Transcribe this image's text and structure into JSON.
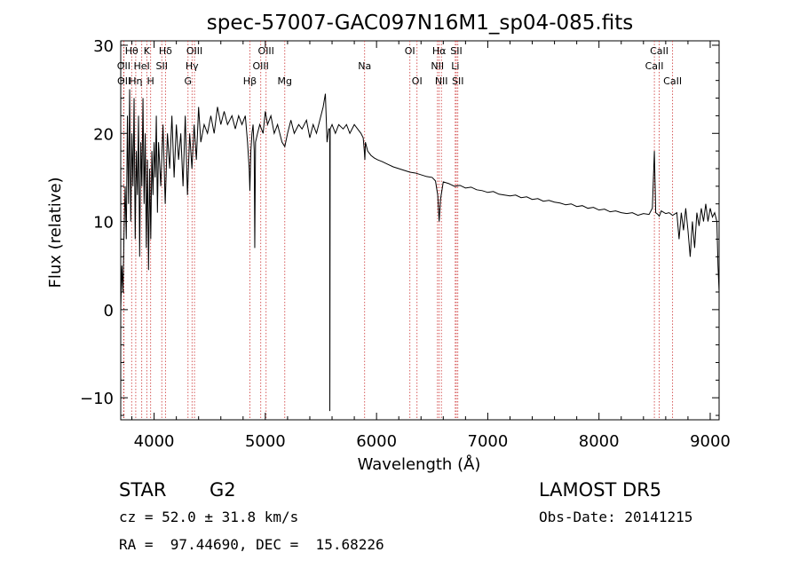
{
  "chart_data": {
    "type": "line",
    "title": "spec-57007-GAC097N16M1_sp04-085.fits",
    "xlabel": "Wavelength (Å)",
    "ylabel": "Flux (relative)",
    "xlim": [
      3700,
      9080
    ],
    "ylim": [
      -12.5,
      30.5
    ],
    "xticks": [
      4000,
      5000,
      6000,
      7000,
      8000,
      9000
    ],
    "yticks": [
      -10,
      0,
      10,
      20,
      30
    ],
    "grid": false,
    "legend": "none",
    "line_color": "#000000",
    "marker_color": "#cc3333",
    "spectral_lines": [
      {
        "label": "Hθ",
        "wavelength": 3798,
        "row": 0
      },
      {
        "label": "OII",
        "wavelength": 3727,
        "row": 1
      },
      {
        "label": "OII",
        "wavelength": 3729,
        "row": 2
      },
      {
        "label": "Hη",
        "wavelength": 3835,
        "row": 2
      },
      {
        "label": "HeI",
        "wavelength": 3889,
        "row": 1
      },
      {
        "label": "K",
        "wavelength": 3934,
        "row": 0
      },
      {
        "label": "H",
        "wavelength": 3969,
        "row": 2
      },
      {
        "label": "SII",
        "wavelength": 4069,
        "row": 1
      },
      {
        "label": "Hδ",
        "wavelength": 4102,
        "row": 0
      },
      {
        "label": "OIII",
        "wavelength": 4363,
        "row": 0
      },
      {
        "label": "Hγ",
        "wavelength": 4341,
        "row": 1
      },
      {
        "label": "G",
        "wavelength": 4305,
        "row": 2
      },
      {
        "label": "Hβ",
        "wavelength": 4861,
        "row": 2
      },
      {
        "label": "OIII",
        "wavelength": 5007,
        "row": 0
      },
      {
        "label": "OIII",
        "wavelength": 4959,
        "row": 1
      },
      {
        "label": "Mg",
        "wavelength": 5175,
        "row": 2
      },
      {
        "label": "Na",
        "wavelength": 5893,
        "row": 1
      },
      {
        "label": "OI",
        "wavelength": 6300,
        "row": 0
      },
      {
        "label": "OI",
        "wavelength": 6364,
        "row": 2
      },
      {
        "label": "Hα",
        "wavelength": 6563,
        "row": 0
      },
      {
        "label": "NII",
        "wavelength": 6548,
        "row": 1
      },
      {
        "label": "NII",
        "wavelength": 6583,
        "row": 2
      },
      {
        "label": "SII",
        "wavelength": 6717,
        "row": 0
      },
      {
        "label": "Li",
        "wavelength": 6708,
        "row": 1
      },
      {
        "label": "SII",
        "wavelength": 6731,
        "row": 2
      },
      {
        "label": "CaII",
        "wavelength": 8542,
        "row": 0
      },
      {
        "label": "CaII",
        "wavelength": 8498,
        "row": 1
      },
      {
        "label": "CaII",
        "wavelength": 8662,
        "row": 2
      }
    ],
    "series": [
      {
        "values": [
          [
            3700,
            0.0
          ],
          [
            3710,
            5.0
          ],
          [
            3720,
            2.0
          ],
          [
            3730,
            9.0
          ],
          [
            3740,
            14.0
          ],
          [
            3750,
            8.0
          ],
          [
            3760,
            22.0
          ],
          [
            3770,
            12.0
          ],
          [
            3780,
            25.0
          ],
          [
            3790,
            10.0
          ],
          [
            3800,
            20.0
          ],
          [
            3810,
            14.0
          ],
          [
            3820,
            24.0
          ],
          [
            3830,
            8.0
          ],
          [
            3840,
            18.0
          ],
          [
            3850,
            13.0
          ],
          [
            3860,
            22.0
          ],
          [
            3870,
            6.0
          ],
          [
            3880,
            19.0
          ],
          [
            3890,
            14.0
          ],
          [
            3900,
            24.0
          ],
          [
            3910,
            12.0
          ],
          [
            3920,
            20.0
          ],
          [
            3930,
            7.0
          ],
          [
            3940,
            17.0
          ],
          [
            3950,
            4.5
          ],
          [
            3960,
            16.0
          ],
          [
            3970,
            8.0
          ],
          [
            3980,
            18.0
          ],
          [
            3990,
            13.0
          ],
          [
            4000,
            19.0
          ],
          [
            4010,
            15.0
          ],
          [
            4020,
            22.0
          ],
          [
            4030,
            11.0
          ],
          [
            4040,
            19.0
          ],
          [
            4060,
            14.0
          ],
          [
            4080,
            21.0
          ],
          [
            4100,
            12.0
          ],
          [
            4120,
            20.0
          ],
          [
            4140,
            16.0
          ],
          [
            4160,
            22.0
          ],
          [
            4180,
            15.0
          ],
          [
            4200,
            21.0
          ],
          [
            4220,
            17.0
          ],
          [
            4240,
            20.0
          ],
          [
            4260,
            14.0
          ],
          [
            4280,
            22.0
          ],
          [
            4300,
            13.0
          ],
          [
            4320,
            20.0
          ],
          [
            4340,
            16.0
          ],
          [
            4360,
            21.0
          ],
          [
            4380,
            17.0
          ],
          [
            4400,
            23.0
          ],
          [
            4420,
            19.0
          ],
          [
            4450,
            21.0
          ],
          [
            4480,
            20.0
          ],
          [
            4510,
            22.0
          ],
          [
            4540,
            20.0
          ],
          [
            4570,
            23.0
          ],
          [
            4600,
            21.0
          ],
          [
            4630,
            22.5
          ],
          [
            4660,
            21.0
          ],
          [
            4700,
            22.0
          ],
          [
            4730,
            20.5
          ],
          [
            4760,
            22.0
          ],
          [
            4790,
            21.0
          ],
          [
            4820,
            22.0
          ],
          [
            4840,
            19.0
          ],
          [
            4855,
            16.0
          ],
          [
            4861,
            13.5
          ],
          [
            4870,
            18.0
          ],
          [
            4880,
            20.0
          ],
          [
            4890,
            21.0
          ],
          [
            4900,
            18.0
          ],
          [
            4905,
            7.0
          ],
          [
            4912,
            19.0
          ],
          [
            4930,
            20.0
          ],
          [
            4950,
            21.0
          ],
          [
            4980,
            20.0
          ],
          [
            5000,
            22.5
          ],
          [
            5020,
            21.0
          ],
          [
            5050,
            22.0
          ],
          [
            5080,
            20.0
          ],
          [
            5110,
            21.0
          ],
          [
            5150,
            19.0
          ],
          [
            5175,
            18.5
          ],
          [
            5200,
            20.0
          ],
          [
            5230,
            21.5
          ],
          [
            5260,
            20.0
          ],
          [
            5300,
            21.0
          ],
          [
            5330,
            20.5
          ],
          [
            5370,
            21.5
          ],
          [
            5400,
            19.5
          ],
          [
            5430,
            21.0
          ],
          [
            5460,
            20.0
          ],
          [
            5490,
            21.5
          ],
          [
            5520,
            23.0
          ],
          [
            5540,
            24.5
          ],
          [
            5555,
            19.0
          ],
          [
            5570,
            20.5
          ],
          [
            5579,
            20.5
          ],
          [
            5580,
            -11.5
          ],
          [
            5583,
            20.5
          ],
          [
            5600,
            21.0
          ],
          [
            5630,
            20.0
          ],
          [
            5660,
            21.0
          ],
          [
            5700,
            20.5
          ],
          [
            5730,
            21.0
          ],
          [
            5760,
            20.0
          ],
          [
            5800,
            21.0
          ],
          [
            5830,
            20.5
          ],
          [
            5860,
            20.0
          ],
          [
            5880,
            19.5
          ],
          [
            5890,
            18.0
          ],
          [
            5895,
            17.0
          ],
          [
            5900,
            19.0
          ],
          [
            5920,
            18.0
          ],
          [
            5950,
            17.5
          ],
          [
            5980,
            17.2
          ],
          [
            6010,
            17.0
          ],
          [
            6050,
            16.8
          ],
          [
            6100,
            16.5
          ],
          [
            6150,
            16.2
          ],
          [
            6200,
            16.0
          ],
          [
            6250,
            15.8
          ],
          [
            6300,
            15.6
          ],
          [
            6350,
            15.5
          ],
          [
            6400,
            15.3
          ],
          [
            6450,
            15.1
          ],
          [
            6500,
            15.0
          ],
          [
            6530,
            14.6
          ],
          [
            6550,
            13.0
          ],
          [
            6563,
            10.0
          ],
          [
            6575,
            12.5
          ],
          [
            6600,
            14.5
          ],
          [
            6650,
            14.3
          ],
          [
            6700,
            14.0
          ],
          [
            6750,
            14.1
          ],
          [
            6800,
            13.8
          ],
          [
            6850,
            13.9
          ],
          [
            6900,
            13.6
          ],
          [
            6950,
            13.5
          ],
          [
            7000,
            13.3
          ],
          [
            7050,
            13.4
          ],
          [
            7100,
            13.1
          ],
          [
            7150,
            13.0
          ],
          [
            7200,
            12.9
          ],
          [
            7250,
            13.0
          ],
          [
            7300,
            12.7
          ],
          [
            7350,
            12.8
          ],
          [
            7400,
            12.5
          ],
          [
            7450,
            12.6
          ],
          [
            7500,
            12.3
          ],
          [
            7550,
            12.4
          ],
          [
            7600,
            12.2
          ],
          [
            7650,
            12.1
          ],
          [
            7700,
            11.9
          ],
          [
            7750,
            12.0
          ],
          [
            7800,
            11.7
          ],
          [
            7850,
            11.8
          ],
          [
            7900,
            11.5
          ],
          [
            7950,
            11.6
          ],
          [
            8000,
            11.3
          ],
          [
            8050,
            11.4
          ],
          [
            8100,
            11.1
          ],
          [
            8150,
            11.2
          ],
          [
            8200,
            11.0
          ],
          [
            8250,
            10.9
          ],
          [
            8300,
            11.0
          ],
          [
            8350,
            10.7
          ],
          [
            8400,
            10.9
          ],
          [
            8450,
            10.8
          ],
          [
            8480,
            11.5
          ],
          [
            8498,
            18.0
          ],
          [
            8510,
            11.0
          ],
          [
            8530,
            10.8
          ],
          [
            8542,
            10.6
          ],
          [
            8560,
            11.2
          ],
          [
            8600,
            10.9
          ],
          [
            8630,
            11.0
          ],
          [
            8662,
            10.7
          ],
          [
            8700,
            11.0
          ],
          [
            8720,
            8.0
          ],
          [
            8740,
            11.0
          ],
          [
            8760,
            9.0
          ],
          [
            8780,
            11.5
          ],
          [
            8800,
            9.0
          ],
          [
            8820,
            6.0
          ],
          [
            8840,
            10.0
          ],
          [
            8860,
            7.0
          ],
          [
            8880,
            11.0
          ],
          [
            8900,
            9.5
          ],
          [
            8920,
            11.5
          ],
          [
            8940,
            10.0
          ],
          [
            8960,
            12.0
          ],
          [
            8980,
            10.0
          ],
          [
            9000,
            11.5
          ],
          [
            9020,
            10.5
          ],
          [
            9040,
            11.0
          ],
          [
            9060,
            10.0
          ],
          [
            9070,
            5.0
          ],
          [
            9080,
            2.0
          ]
        ]
      }
    ]
  },
  "info": {
    "object_class": "STAR",
    "subclass": "G2",
    "survey": "LAMOST DR5",
    "cz": "cz = 52.0 ± 31.8 km/s",
    "obs_date": "Obs-Date: 20141215",
    "coords": "RA =  97.44690, DEC =  15.68226"
  }
}
